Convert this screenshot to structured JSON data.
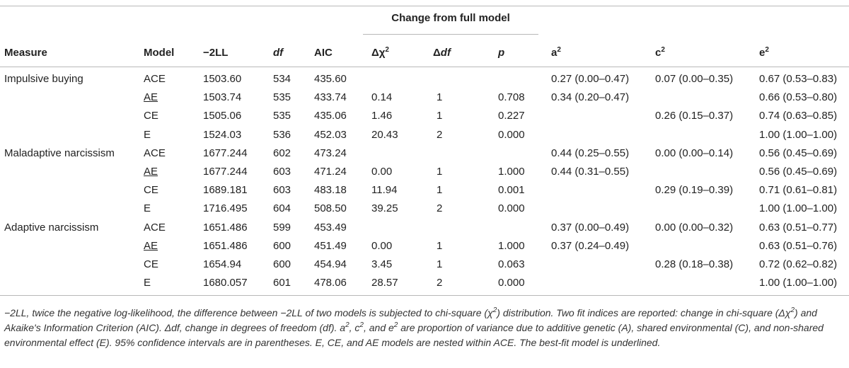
{
  "header": {
    "group_title": "Change from full model",
    "measure": "Measure",
    "model": "Model",
    "ll": "−2LL",
    "df": "df",
    "aic": "AIC",
    "dchi": "Δχ",
    "ddf_delta": "Δ",
    "ddf_df": "df",
    "p": "p",
    "a": "a",
    "c": "c",
    "e": "e",
    "sq": "2"
  },
  "rows": [
    {
      "measure": "Impulsive buying",
      "model": "ACE",
      "underline": false,
      "ll": "1503.60",
      "df": "534",
      "aic": "435.60",
      "dchi": "",
      "ddf": "",
      "p": "",
      "a": "0.27 (0.00–0.47)",
      "c": "0.07 (0.00–0.35)",
      "e": "0.67 (0.53–0.83)"
    },
    {
      "measure": "",
      "model": "AE",
      "underline": true,
      "ll": "1503.74",
      "df": "535",
      "aic": "433.74",
      "dchi": "0.14",
      "ddf": "1",
      "p": "0.708",
      "a": "0.34 (0.20–0.47)",
      "c": "",
      "e": "0.66 (0.53–0.80)"
    },
    {
      "measure": "",
      "model": "CE",
      "underline": false,
      "ll": "1505.06",
      "df": "535",
      "aic": "435.06",
      "dchi": "1.46",
      "ddf": "1",
      "p": "0.227",
      "a": "",
      "c": "0.26 (0.15–0.37)",
      "e": "0.74 (0.63–0.85)"
    },
    {
      "measure": "",
      "model": "E",
      "underline": false,
      "ll": "1524.03",
      "df": "536",
      "aic": "452.03",
      "dchi": "20.43",
      "ddf": "2",
      "p": "0.000",
      "a": "",
      "c": "",
      "e": "1.00 (1.00–1.00)"
    },
    {
      "measure": "Maladaptive narcissism",
      "model": "ACE",
      "underline": false,
      "ll": "1677.244",
      "df": "602",
      "aic": "473.24",
      "dchi": "",
      "ddf": "",
      "p": "",
      "a": "0.44 (0.25–0.55)",
      "c": "0.00 (0.00–0.14)",
      "e": "0.56 (0.45–0.69)"
    },
    {
      "measure": "",
      "model": "AE",
      "underline": true,
      "ll": "1677.244",
      "df": "603",
      "aic": "471.24",
      "dchi": "0.00",
      "ddf": "1",
      "p": "1.000",
      "a": "0.44 (0.31–0.55)",
      "c": "",
      "e": "0.56 (0.45–0.69)"
    },
    {
      "measure": "",
      "model": "CE",
      "underline": false,
      "ll": "1689.181",
      "df": "603",
      "aic": "483.18",
      "dchi": "11.94",
      "ddf": "1",
      "p": "0.001",
      "a": "",
      "c": "0.29 (0.19–0.39)",
      "e": "0.71 (0.61–0.81)"
    },
    {
      "measure": "",
      "model": "E",
      "underline": false,
      "ll": "1716.495",
      "df": "604",
      "aic": "508.50",
      "dchi": "39.25",
      "ddf": "2",
      "p": "0.000",
      "a": "",
      "c": "",
      "e": "1.00 (1.00–1.00)"
    },
    {
      "measure": "Adaptive narcissism",
      "model": "ACE",
      "underline": false,
      "ll": "1651.486",
      "df": "599",
      "aic": "453.49",
      "dchi": "",
      "ddf": "",
      "p": "",
      "a": "0.37 (0.00–0.49)",
      "c": "0.00 (0.00–0.32)",
      "e": "0.63 (0.51–0.77)"
    },
    {
      "measure": "",
      "model": "AE",
      "underline": true,
      "ll": "1651.486",
      "df": "600",
      "aic": "451.49",
      "dchi": "0.00",
      "ddf": "1",
      "p": "1.000",
      "a": "0.37 (0.24–0.49)",
      "c": "",
      "e": "0.63 (0.51–0.76)"
    },
    {
      "measure": "",
      "model": "CE",
      "underline": false,
      "ll": "1654.94",
      "df": "600",
      "aic": "454.94",
      "dchi": "3.45",
      "ddf": "1",
      "p": "0.063",
      "a": "",
      "c": "0.28 (0.18–0.38)",
      "e": "0.72 (0.62–0.82)"
    },
    {
      "measure": "",
      "model": "E",
      "underline": false,
      "ll": "1680.057",
      "df": "601",
      "aic": "478.06",
      "dchi": "28.57",
      "ddf": "2",
      "p": "0.000",
      "a": "",
      "c": "",
      "e": "1.00 (1.00–1.00)"
    }
  ],
  "note": [
    {
      "t": "−2LL, twice the negative log-likelihood, the difference between −2LL of two models is subjected to chi-square (χ"
    },
    {
      "t": "2",
      "sup": true
    },
    {
      "t": ") distribution. Two fit indices are reported: change in chi-square (Δχ"
    },
    {
      "t": "2",
      "sup": true
    },
    {
      "t": ") and Akaike's Information Criterion (AIC). Δdf, change in degrees of freedom (df). a"
    },
    {
      "t": "2",
      "sup": true
    },
    {
      "t": ", c"
    },
    {
      "t": "2",
      "sup": true
    },
    {
      "t": ", and e"
    },
    {
      "t": "2",
      "sup": true
    },
    {
      "t": " are proportion of variance due to additive genetic (A), shared environmental (C), and non-shared environmental effect (E). 95% confidence intervals are in parentheses. E, CE, and AE models are nested within ACE. The best-fit model is underlined."
    }
  ]
}
